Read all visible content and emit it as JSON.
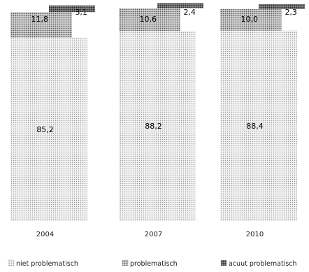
{
  "chart_data": {
    "type": "bar",
    "stacked": true,
    "percent": true,
    "categories": [
      "2004",
      "2007",
      "2010"
    ],
    "series": [
      {
        "name": "niet problematisch",
        "values": [
          85.2,
          88.2,
          88.4
        ],
        "labels": [
          "85,2",
          "88,2",
          "88,4"
        ]
      },
      {
        "name": "problematisch",
        "values": [
          11.8,
          10.6,
          10.0
        ],
        "labels": [
          "11,8",
          "10,6",
          "10,0"
        ]
      },
      {
        "name": "acuut problematisch",
        "values": [
          3.1,
          2.4,
          2.3
        ],
        "labels": [
          "3,1",
          "2,4",
          "2,3"
        ]
      }
    ],
    "ylim": [
      0,
      100
    ],
    "grid": false,
    "legend_position": "bottom",
    "colors": {
      "niet_problematisch": "#e6e6e6",
      "problematisch": "#bdbdbd",
      "acuut_problematisch": "#6e6e6e"
    }
  }
}
